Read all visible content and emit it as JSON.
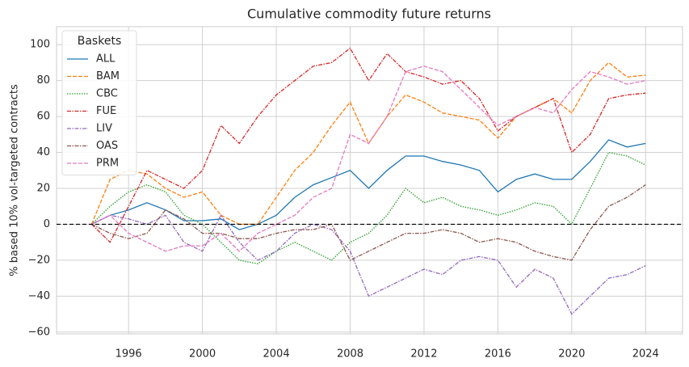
{
  "chart_data": {
    "type": "line",
    "title": "Cumulative commodity future returns",
    "y_label": "% based 10% vol-targeted contracts",
    "legend_title": "Baskets",
    "legend_position": "upper-left",
    "grid": true,
    "reference_line": 0,
    "x": [
      1994,
      1995,
      1996,
      1997,
      1998,
      1999,
      2000,
      2001,
      2002,
      2003,
      2004,
      2005,
      2006,
      2007,
      2008,
      2009,
      2010,
      2011,
      2012,
      2013,
      2014,
      2015,
      2016,
      2017,
      2018,
      2019,
      2020,
      2021,
      2022,
      2023,
      2024
    ],
    "xlim": [
      1992.1,
      2026
    ],
    "xticks": [
      1996,
      2000,
      2004,
      2008,
      2012,
      2016,
      2020,
      2024
    ],
    "ylim": [
      -61,
      110
    ],
    "yticks": [
      {
        "value": -60,
        "label": "−60"
      },
      {
        "value": -40,
        "label": "−40"
      },
      {
        "value": -20,
        "label": "−20"
      },
      0,
      20,
      40,
      60,
      80,
      100
    ],
    "series": [
      {
        "name": "ALL",
        "color": "#1f77b4",
        "linestyle": "solid",
        "values": [
          0,
          5,
          8,
          12,
          8,
          2,
          2,
          3,
          -3,
          0,
          5,
          15,
          22,
          26,
          30,
          20,
          30,
          38,
          38,
          35,
          33,
          30,
          18,
          25,
          28,
          25,
          25,
          35,
          47,
          43,
          45
        ]
      },
      {
        "name": "BAM",
        "color": "#ff7f0e",
        "linestyle": "dashed",
        "values": [
          0,
          25,
          30,
          28,
          20,
          15,
          18,
          5,
          0,
          0,
          15,
          30,
          40,
          55,
          68,
          45,
          60,
          72,
          68,
          62,
          60,
          58,
          48,
          60,
          65,
          70,
          62,
          80,
          90,
          82,
          83
        ]
      },
      {
        "name": "CBC",
        "color": "#2ca02c",
        "linestyle": "dotted",
        "values": [
          0,
          10,
          18,
          22,
          18,
          5,
          0,
          -10,
          -20,
          -22,
          -15,
          -10,
          -15,
          -20,
          -10,
          -5,
          5,
          20,
          12,
          15,
          10,
          8,
          5,
          8,
          12,
          10,
          0,
          20,
          40,
          38,
          33
        ]
      },
      {
        "name": "FUE",
        "color": "#d62728",
        "linestyle": "dashdot",
        "values": [
          0,
          -10,
          10,
          30,
          25,
          20,
          30,
          55,
          45,
          60,
          72,
          80,
          88,
          90,
          98,
          80,
          95,
          85,
          82,
          78,
          80,
          70,
          52,
          60,
          65,
          70,
          40,
          50,
          70,
          72,
          73
        ]
      },
      {
        "name": "LIV",
        "color": "#9467bd",
        "linestyle": "dashdot",
        "values": [
          0,
          5,
          3,
          0,
          5,
          -10,
          -15,
          5,
          -10,
          -20,
          -15,
          -5,
          0,
          -3,
          -15,
          -40,
          -35,
          -30,
          -25,
          -28,
          -20,
          -18,
          -20,
          -35,
          -25,
          -30,
          -50,
          -40,
          -30,
          -28,
          -23
        ]
      },
      {
        "name": "OAS",
        "color": "#8c564b",
        "linestyle": "dashdot",
        "values": [
          0,
          -5,
          -8,
          -5,
          8,
          3,
          -5,
          -5,
          -8,
          -8,
          -5,
          -3,
          -3,
          0,
          -20,
          -15,
          -10,
          -5,
          -5,
          -3,
          -5,
          -10,
          -8,
          -10,
          -15,
          -18,
          -20,
          -3,
          10,
          15,
          22
        ]
      },
      {
        "name": "PRM",
        "color": "#e377c2",
        "linestyle": "dashed",
        "values": [
          0,
          5,
          -5,
          -10,
          -15,
          -12,
          -12,
          -5,
          -15,
          -5,
          0,
          5,
          15,
          20,
          50,
          45,
          60,
          85,
          88,
          85,
          75,
          65,
          55,
          60,
          65,
          62,
          75,
          85,
          82,
          78,
          80
        ]
      }
    ]
  }
}
